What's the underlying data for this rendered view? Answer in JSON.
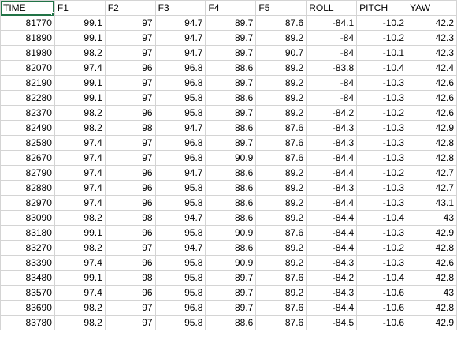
{
  "sheet": {
    "headers": [
      "TIME",
      "F1",
      "F2",
      "F3",
      "F4",
      "F5",
      "ROLL",
      "PITCH",
      "YAW"
    ],
    "rows": [
      [
        "81770",
        "99.1",
        "97",
        "94.7",
        "89.7",
        "87.6",
        "-84.1",
        "-10.2",
        "42.2"
      ],
      [
        "81890",
        "99.1",
        "97",
        "94.7",
        "89.7",
        "89.2",
        "-84",
        "-10.2",
        "42.3"
      ],
      [
        "81980",
        "98.2",
        "97",
        "94.7",
        "89.7",
        "90.7",
        "-84",
        "-10.1",
        "42.3"
      ],
      [
        "82070",
        "97.4",
        "96",
        "96.8",
        "88.6",
        "89.2",
        "-83.8",
        "-10.4",
        "42.4"
      ],
      [
        "82190",
        "99.1",
        "97",
        "96.8",
        "89.7",
        "89.2",
        "-84",
        "-10.3",
        "42.6"
      ],
      [
        "82280",
        "99.1",
        "97",
        "95.8",
        "88.6",
        "89.2",
        "-84",
        "-10.3",
        "42.6"
      ],
      [
        "82370",
        "98.2",
        "96",
        "95.8",
        "89.7",
        "89.2",
        "-84.2",
        "-10.2",
        "42.6"
      ],
      [
        "82490",
        "98.2",
        "98",
        "94.7",
        "88.6",
        "87.6",
        "-84.3",
        "-10.3",
        "42.9"
      ],
      [
        "82580",
        "97.4",
        "97",
        "96.8",
        "89.7",
        "87.6",
        "-84.3",
        "-10.3",
        "42.8"
      ],
      [
        "82670",
        "97.4",
        "97",
        "96.8",
        "90.9",
        "87.6",
        "-84.4",
        "-10.3",
        "42.8"
      ],
      [
        "82790",
        "97.4",
        "96",
        "94.7",
        "88.6",
        "89.2",
        "-84.4",
        "-10.2",
        "42.7"
      ],
      [
        "82880",
        "97.4",
        "96",
        "95.8",
        "88.6",
        "89.2",
        "-84.3",
        "-10.3",
        "42.7"
      ],
      [
        "82970",
        "97.4",
        "96",
        "95.8",
        "88.6",
        "89.2",
        "-84.4",
        "-10.3",
        "43.1"
      ],
      [
        "83090",
        "98.2",
        "98",
        "94.7",
        "88.6",
        "89.2",
        "-84.4",
        "-10.4",
        "43"
      ],
      [
        "83180",
        "99.1",
        "96",
        "95.8",
        "90.9",
        "87.6",
        "-84.4",
        "-10.3",
        "42.9"
      ],
      [
        "83270",
        "98.2",
        "97",
        "94.7",
        "88.6",
        "89.2",
        "-84.4",
        "-10.2",
        "42.8"
      ],
      [
        "83390",
        "97.4",
        "96",
        "95.8",
        "90.9",
        "89.2",
        "-84.3",
        "-10.3",
        "42.6"
      ],
      [
        "83480",
        "99.1",
        "98",
        "95.8",
        "89.7",
        "87.6",
        "-84.2",
        "-10.4",
        "42.8"
      ],
      [
        "83570",
        "97.4",
        "96",
        "95.8",
        "89.7",
        "89.2",
        "-84.3",
        "-10.6",
        "43"
      ],
      [
        "83690",
        "98.2",
        "97",
        "96.8",
        "89.7",
        "87.6",
        "-84.4",
        "-10.6",
        "42.8"
      ],
      [
        "83780",
        "98.2",
        "97",
        "95.8",
        "88.6",
        "87.6",
        "-84.5",
        "-10.6",
        "42.9"
      ]
    ]
  },
  "colors": {
    "gridline": "#d4d4d4",
    "selection": "#217346"
  }
}
